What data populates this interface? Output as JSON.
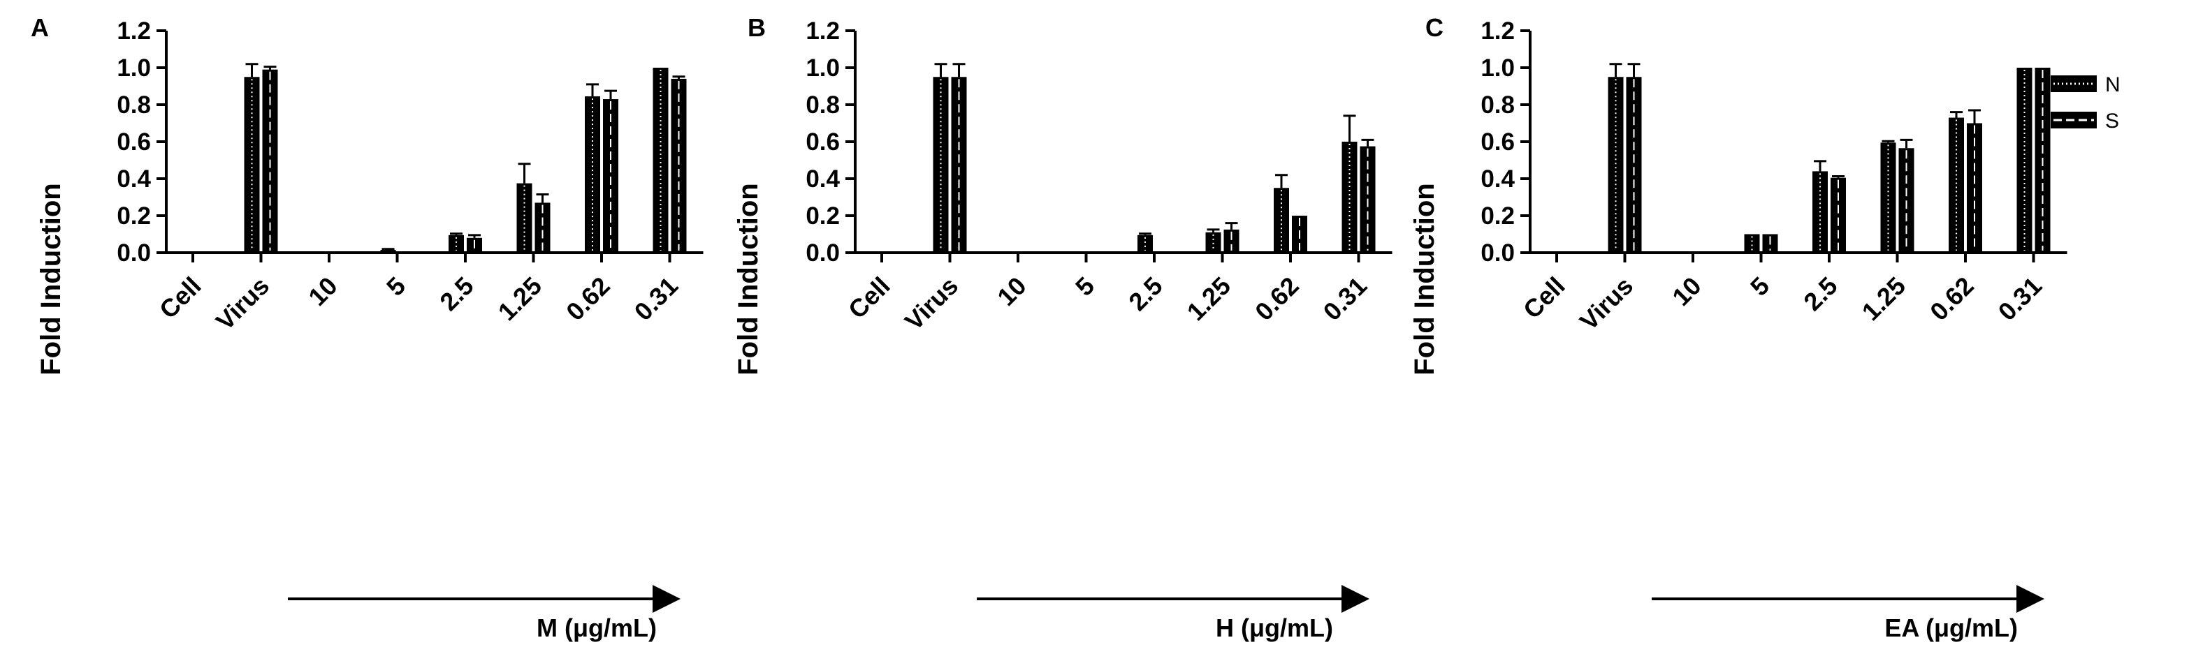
{
  "figure": {
    "legend": [
      {
        "label": "N",
        "pattern": "dotted"
      },
      {
        "label": "S",
        "pattern": "dashed"
      }
    ]
  },
  "chart_data": [
    {
      "panel": "A",
      "type": "bar",
      "categories": [
        "Cell",
        "Virus",
        "10",
        "5",
        "2.5",
        "1.25",
        "0.62",
        "0.31"
      ],
      "ylabel": "Fold Induction",
      "xlabel": "M (μg/mL)",
      "ylim": [
        0,
        1.2
      ],
      "yticks": [
        "0.0",
        "0.2",
        "0.4",
        "0.6",
        "0.8",
        "1.0",
        "1.2"
      ],
      "series": [
        {
          "name": "N",
          "values": [
            0,
            0.95,
            0,
            0.015,
            0.095,
            0.375,
            0.845,
            1.0
          ],
          "errors": [
            0,
            0.07,
            0,
            0.005,
            0.008,
            0.105,
            0.065,
            0
          ]
        },
        {
          "name": "S",
          "values": [
            0,
            0.99,
            0,
            0,
            0.08,
            0.27,
            0.83,
            0.94
          ],
          "errors": [
            0,
            0.015,
            0,
            0,
            0.015,
            0.045,
            0.045,
            0.012
          ]
        }
      ]
    },
    {
      "panel": "B",
      "type": "bar",
      "categories": [
        "Cell",
        "Virus",
        "10",
        "5",
        "2.5",
        "1.25",
        "0.62",
        "0.31"
      ],
      "ylabel": "Fold Induction",
      "xlabel": "H (μg/mL)",
      "ylim": [
        0,
        1.2
      ],
      "yticks": [
        "0.0",
        "0.2",
        "0.4",
        "0.6",
        "0.8",
        "1.0",
        "1.2"
      ],
      "series": [
        {
          "name": "N",
          "values": [
            0,
            0.95,
            0,
            0,
            0.095,
            0.11,
            0.35,
            0.6
          ],
          "errors": [
            0,
            0.07,
            0,
            0,
            0.008,
            0.015,
            0.07,
            0.14
          ]
        },
        {
          "name": "S",
          "values": [
            0,
            0.95,
            0,
            0,
            0,
            0.125,
            0.2,
            0.575
          ],
          "errors": [
            0,
            0.07,
            0,
            0,
            0,
            0.035,
            0,
            0.035
          ]
        }
      ]
    },
    {
      "panel": "C",
      "type": "bar",
      "categories": [
        "Cell",
        "Virus",
        "10",
        "5",
        "2.5",
        "1.25",
        "0.62",
        "0.31"
      ],
      "ylabel": "Fold Induction",
      "xlabel": "EA (μg/mL)",
      "ylim": [
        0,
        1.2
      ],
      "yticks": [
        "0.0",
        "0.2",
        "0.4",
        "0.6",
        "0.8",
        "1.0",
        "1.2"
      ],
      "series": [
        {
          "name": "N",
          "values": [
            0,
            0.95,
            0,
            0.1,
            0.44,
            0.595,
            0.73,
            1.0
          ],
          "errors": [
            0,
            0.07,
            0,
            0,
            0.055,
            0.008,
            0.03,
            0
          ]
        },
        {
          "name": "S",
          "values": [
            0,
            0.95,
            0,
            0.1,
            0.405,
            0.565,
            0.7,
            1.0
          ],
          "errors": [
            0,
            0.07,
            0,
            0,
            0.008,
            0.045,
            0.07,
            0
          ]
        }
      ]
    }
  ]
}
